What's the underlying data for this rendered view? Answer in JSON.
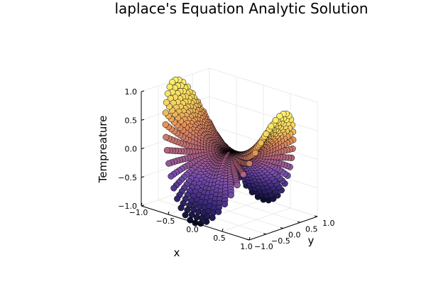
{
  "chart_data": {
    "type": "scatter3d",
    "title": "laplace's Equation Analytic Solution",
    "xlabel": "x",
    "ylabel": "y",
    "zlabel": "Tempreature",
    "xlim": [
      -1.0,
      1.0
    ],
    "ylim": [
      -1.0,
      1.0
    ],
    "zlim": [
      -1.0,
      1.0
    ],
    "x_ticks": [
      "−1.0",
      "−0.5",
      "0.0",
      "0.5",
      "1.0"
    ],
    "y_ticks": [
      "−1.0",
      "−0.5",
      "0.0",
      "0.5",
      "1.0"
    ],
    "z_ticks": [
      "−1.0",
      "−0.5",
      "0.0",
      "0.5",
      "1.0"
    ],
    "surface": "r^2 * cos(2*theta) on the unit disk",
    "colormap": [
      "#0c0f2e",
      "#3b2a7a",
      "#7a4fae",
      "#b4647e",
      "#e08a5a",
      "#f5d45e",
      "#fdf06a"
    ],
    "grid": true,
    "legend": "none"
  }
}
